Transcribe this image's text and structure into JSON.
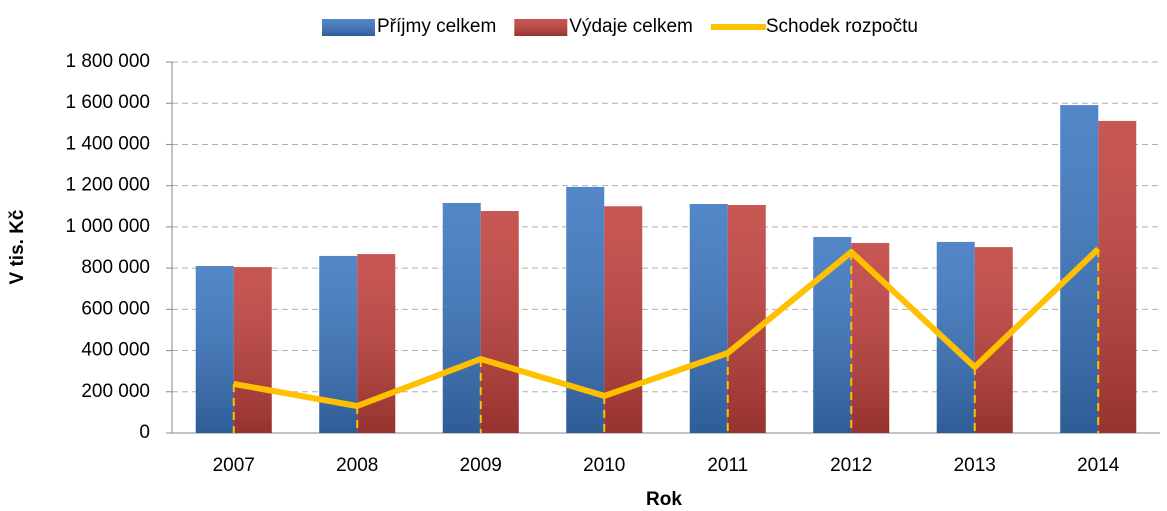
{
  "chart_data": {
    "type": "bar",
    "categories": [
      "2007",
      "2008",
      "2009",
      "2010",
      "2011",
      "2012",
      "2013",
      "2014"
    ],
    "series": [
      {
        "name": "Příjmy celkem",
        "color": "#3b76c0",
        "type": "bar",
        "values": [
          810000,
          859000,
          1116000,
          1194000,
          1111000,
          951000,
          927000,
          1591000
        ]
      },
      {
        "name": "Výdaje celkem",
        "color": "#c0403c",
        "type": "bar",
        "values": [
          805000,
          868000,
          1077000,
          1100000,
          1106000,
          922000,
          902000,
          1514000
        ]
      },
      {
        "name": "Schodek rozpočtu",
        "color": "#ffc000",
        "type": "line",
        "values": [
          238000,
          131000,
          359000,
          180000,
          388000,
          878000,
          320000,
          893000
        ]
      }
    ],
    "x_label": "Rok",
    "y_label": "V tis. Kč",
    "ylim": [
      0,
      1800000
    ],
    "yticks": [
      0,
      {
        "value": 200000,
        "label": "200 000"
      },
      {
        "value": 400000,
        "label": "400 000"
      },
      {
        "value": 600000,
        "label": "600 000"
      },
      {
        "value": 800000,
        "label": "800 000"
      },
      {
        "value": 1000000,
        "label": "1 000 000"
      },
      {
        "value": 1200000,
        "label": "1 200 000"
      },
      {
        "value": 1400000,
        "label": "1 400 000"
      },
      {
        "value": 1600000,
        "label": "1 600 000"
      },
      {
        "value": 1800000,
        "label": "1 800 000"
      }
    ],
    "grid": true,
    "legend": "top"
  }
}
